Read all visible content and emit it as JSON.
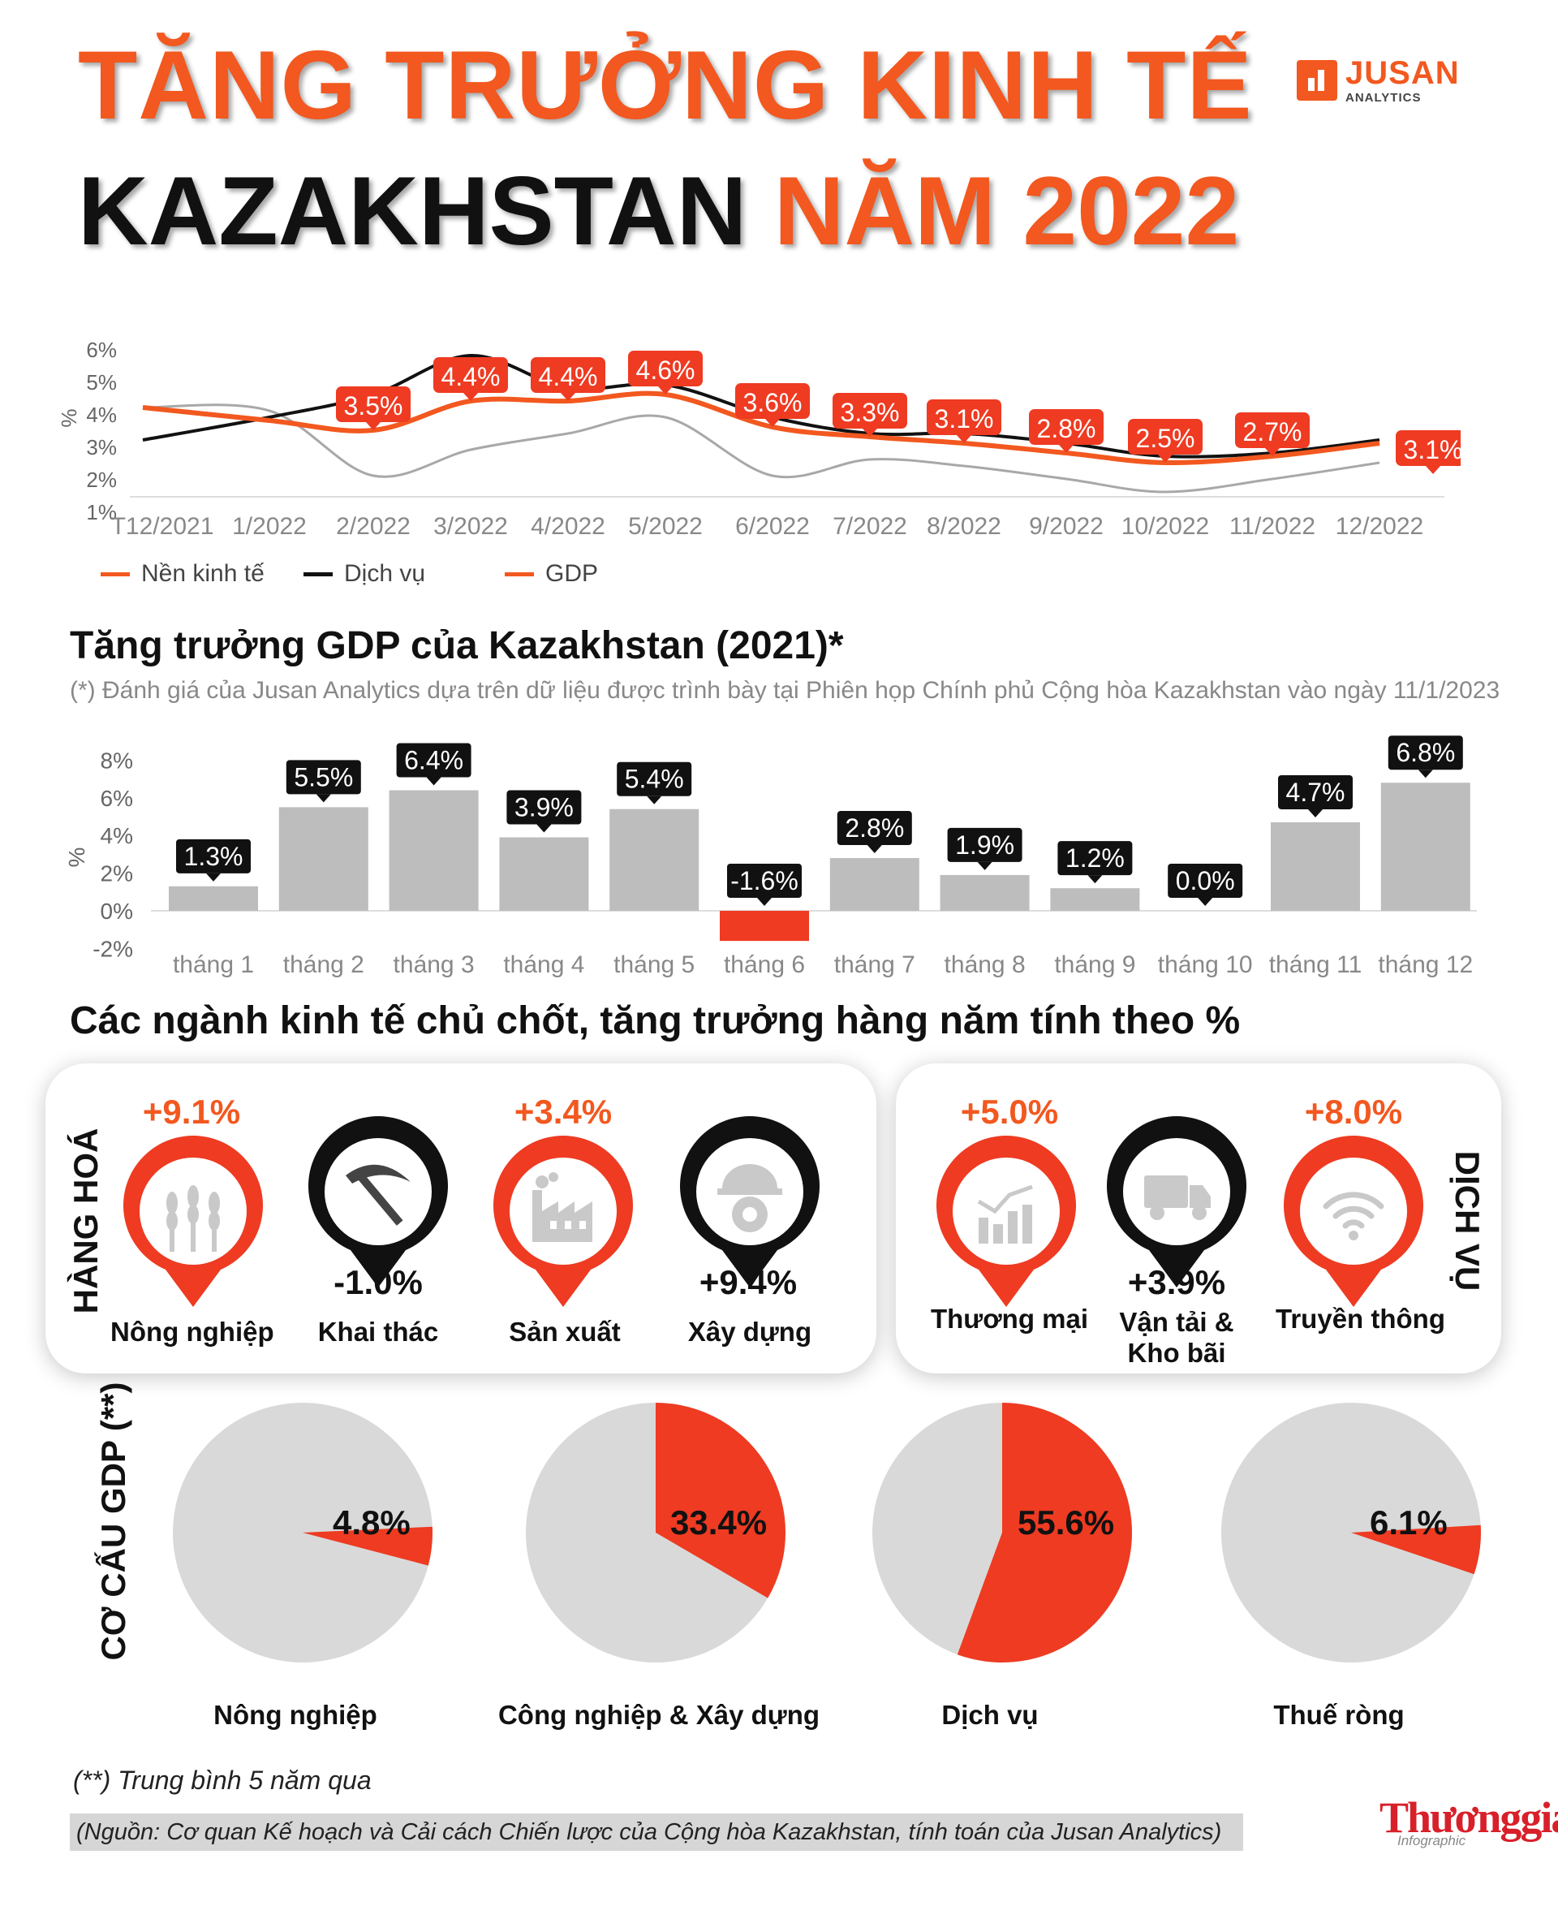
{
  "title": {
    "line1": "TĂNG TRƯỞNG KINH TẾ",
    "line2_dark": "KAZAKHSTAN",
    "line2_orange": "NĂM 2022"
  },
  "logo": {
    "name": "JUSAN",
    "sub": "ANALYTICS"
  },
  "colors": {
    "orange": "#f2581f",
    "red": "#ee3b22",
    "dark": "#111111",
    "gray": "#bdbdbd",
    "gray_line": "#a8a8a8"
  },
  "chart_data": [
    {
      "type": "line",
      "x": [
        "T12/2021",
        "1/2022",
        "2/2022",
        "3/2022",
        "4/2022",
        "5/2022",
        "6/2022",
        "7/2022",
        "8/2022",
        "9/2022",
        "10/2022",
        "11/2022",
        "12/2022"
      ],
      "ylabel": "%",
      "yticks": [
        "6%",
        "5%",
        "4%",
        "3%",
        "2%",
        "1%"
      ],
      "ylim": [
        1,
        6
      ],
      "series": [
        {
          "name": "Nền kinh tế",
          "values": [
            4.2,
            3.8,
            3.5,
            4.4,
            4.4,
            4.6,
            3.6,
            3.3,
            3.1,
            2.8,
            2.5,
            2.7,
            3.1
          ]
        },
        {
          "name": "Dịch vụ",
          "values": [
            3.2,
            3.9,
            4.6,
            5.8,
            4.8,
            4.9,
            3.9,
            3.4,
            3.4,
            3.1,
            2.7,
            2.8,
            3.2
          ]
        },
        {
          "name": "GDP",
          "values": [
            4.2,
            4.1,
            2.1,
            2.9,
            3.4,
            3.9,
            2.1,
            2.6,
            2.4,
            2.0,
            1.6,
            2.0,
            2.5
          ]
        }
      ],
      "labels": [
        "",
        "",
        "3.5%",
        "4.4%",
        "4.4%",
        "4.6%",
        "3.6%",
        "3.3%",
        "3.1%",
        "2.8%",
        "2.5%",
        "2.7%",
        "3.1%"
      ]
    },
    {
      "type": "bar",
      "title": "Tăng trưởng GDP của Kazakhstan (2021)*",
      "note": "(*) Đánh giá của Jusan Analytics dựa trên dữ liệu được trình bày tại Phiên họp Chính phủ Cộng hòa Kazakhstan vào ngày 11/1/2023",
      "ylabel": "%",
      "yticks": [
        "8%",
        "6%",
        "4%",
        "2%",
        "0%",
        "-2%"
      ],
      "ylim": [
        -2,
        8
      ],
      "categories": [
        "tháng 1",
        "tháng 2",
        "tháng 3",
        "tháng 4",
        "tháng 5",
        "tháng 6",
        "tháng 7",
        "tháng 8",
        "tháng 9",
        "tháng 10",
        "tháng 11",
        "tháng 12"
      ],
      "values": [
        1.3,
        5.5,
        6.4,
        3.9,
        5.4,
        -1.6,
        2.8,
        1.9,
        1.2,
        0.0,
        4.7,
        6.8
      ],
      "labels": [
        "1.3%",
        "5.5%",
        "6.4%",
        "3.9%",
        "5.4%",
        "-1.6%",
        "2.8%",
        "1.9%",
        "1.2%",
        "0.0%",
        "4.7%",
        "6.8%"
      ]
    },
    {
      "type": "pie",
      "title": "CƠ CẤU GDP (**)",
      "slices": [
        {
          "label": "Nông nghiệp",
          "value": 4.8,
          "text": "4.8%"
        },
        {
          "label": "Công nghiệp & Xây dựng",
          "value": 33.4,
          "text": "33.4%"
        },
        {
          "label": "Dịch vụ",
          "value": 55.6,
          "text": "55.6%"
        },
        {
          "label": "Thuế ròng",
          "value": 6.1,
          "text": "6.1%"
        }
      ]
    }
  ],
  "sectors": {
    "title": "Các ngành kinh tế chủ chốt, tăng trưởng hàng năm tính theo %",
    "goods_label": "HÀNG HOÁ",
    "services_label": "DỊCH VỤ",
    "goods": [
      {
        "name": "Nông nghiệp",
        "value": "+9.1%",
        "icon": "wheat-icon"
      },
      {
        "name": "Khai thác",
        "value": "-1.0%",
        "icon": "pickaxe-icon"
      },
      {
        "name": "Sản xuất",
        "value": "+3.4%",
        "icon": "factory-icon"
      },
      {
        "name": "Xây dựng",
        "value": "+9.4%",
        "icon": "helmet-gear-icon"
      }
    ],
    "services": [
      {
        "name": "Thương mại",
        "value": "+5.0%",
        "icon": "trade-chart-icon"
      },
      {
        "name_line1": "Vận tải &",
        "name_line2": "Kho bãi",
        "value": "+3.9%",
        "icon": "truck-icon"
      },
      {
        "name": "Truyền thông",
        "value": "+8.0%",
        "icon": "wifi-icon"
      }
    ]
  },
  "footnote": "(**) Trung bình 5 năm qua",
  "source": "(Nguồn: Cơ quan Kế hoạch và Cải cách Chiến lược của Cộng hòa Kazakhstan, tính toán của Jusan Analytics)",
  "brand": {
    "name": "Thươnggia",
    "sub": "Infographic"
  }
}
